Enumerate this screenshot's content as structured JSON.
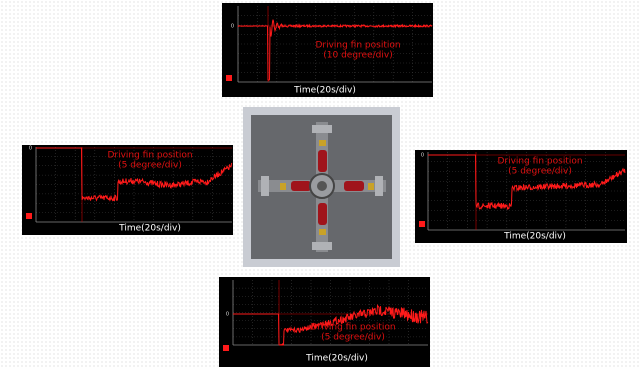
{
  "panels": [
    {
      "zero_label": "0",
      "title": "Driving fin position",
      "scale": "(10 degree/div)",
      "x_label": "Time(20s/div)"
    },
    {
      "zero_label": "0",
      "title": "Driving fin position",
      "scale": "(5 degree/div)",
      "x_label": "Time(20s/div)"
    },
    {
      "zero_label": "0",
      "title": "Driving fin position",
      "scale": "(5 degree/div)",
      "x_label": "Time(20s/div)"
    },
    {
      "zero_label": "0",
      "title": "Driving fin position",
      "scale": "(5 degree/div)",
      "x_label": "Time(20s/div)"
    }
  ]
}
